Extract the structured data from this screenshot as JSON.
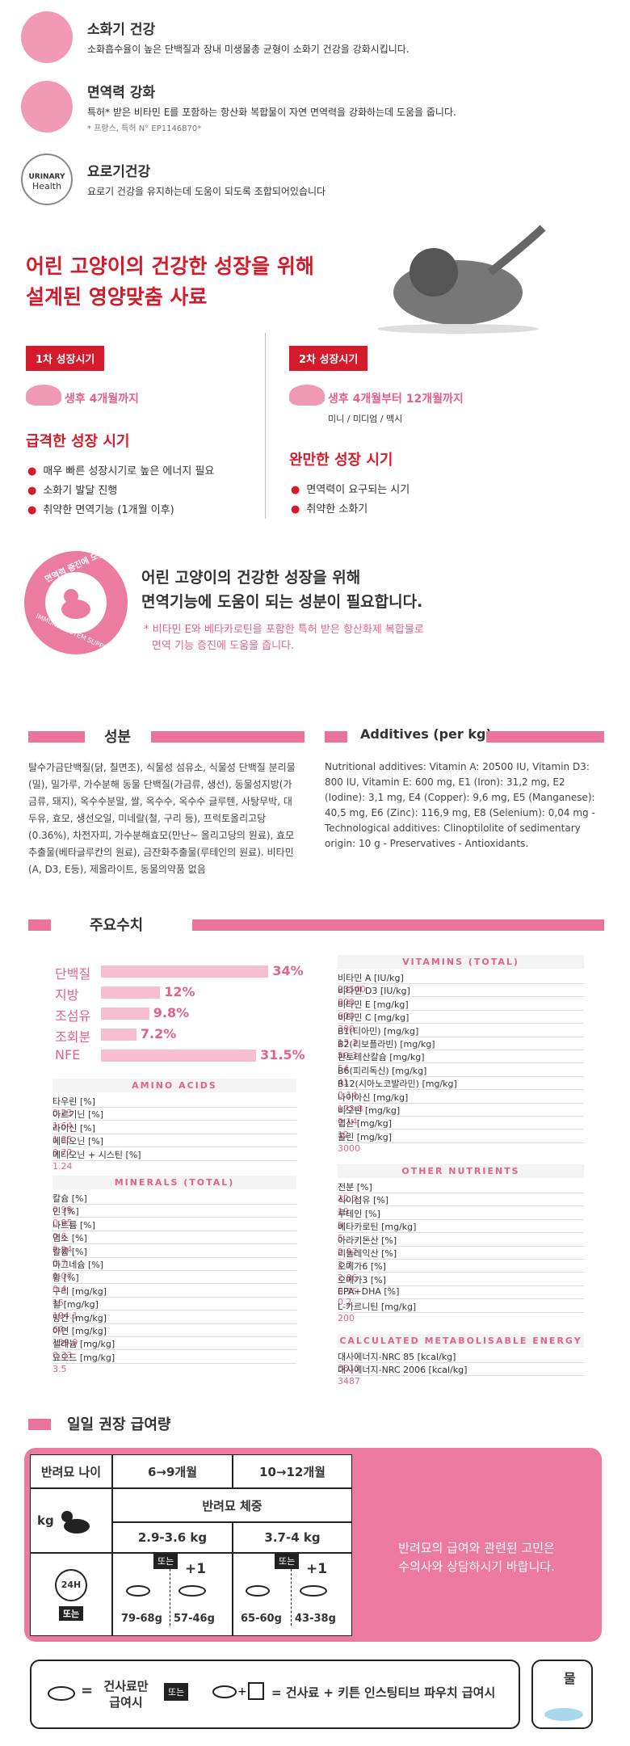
{
  "benefits": [
    {
      "title": "소화기 건강",
      "text": "소화흡수율이 높은 단백질과 장내 미생물총 균형이 소화기 건강을 강화시킵니다."
    },
    {
      "title": "면역력 강화",
      "text": "특허* 받은 비타민 E를 포함하는 항산화 복합물이 자연 면역력을 강화하는데 도움을 줍니다.",
      "note": "* 프랑스, 특허 N° EP1146870*"
    },
    {
      "title": "요로기건강",
      "text": "요로기 건강을 유지하는데 도움이 되도록 조합되어있습니다",
      "icon": [
        "URINARY",
        "Health"
      ]
    }
  ],
  "growth": {
    "headline": [
      "어린 고양이의 건강한 성장을 위해",
      "설계된 영양맞춤 사료"
    ],
    "stages": [
      {
        "badge": "1차 성장시기",
        "age": "생후 4개월까지",
        "title": "급격한 성장 시기",
        "bullets": [
          "매우 빠른 성장시기로 높은 에너지 필요",
          "소화기 발달 진행",
          "취약한 면역기능 (1개월 이후)"
        ]
      },
      {
        "badge": "2차 성장시기",
        "age": "생후 4개월부터 12개월까지",
        "sizes": "미니 / 미디엄 / 맥시",
        "title": "완만한 성장 시기",
        "bullets": [
          "면역력이 요구되는 시기",
          "취약한 소화기"
        ]
      }
    ]
  },
  "immune": {
    "badge": [
      "면역력 증진에 도움",
      "IMMUNE SYSTEM SUPPORT"
    ],
    "headline": [
      "어린 고양이의 건강한 성장을 위해",
      "면역기능에 도움이 되는 성분이 필요합니다."
    ],
    "note": [
      "* 비타민 E와 베타카로틴을 포함한 특허 받은 항산화제 복합물로",
      "면역 기능 증진에 도움을 줍니다."
    ]
  },
  "ingredients": {
    "title": "성분",
    "text": "탈수가금단백질(닭, 칠면조), 식물성 섬유소, 식물성 단백질 분리물(밀), 밀가루, 가수분해 동물 단백질(가금류, 생선), 동물성지방(가금류, 돼지), 옥수수분말, 쌀, 옥수수, 옥수수 글루텐, 사탕무박, 대두유, 효모, 생선오일, 미네랄(철, 구리 등), 프럭토올리고당(0.36%), 차전자피, 가수분해효모(만난~ 올리고당의 원료), 효모추출물(베타글루칸의 원료), 금잔화추출물(루테인의 원료). 비타민(A, D3, E등), 제올라이트, 동물의약품 없음"
  },
  "additives": {
    "title": "Additives (per kg)",
    "text": "Nutritional additives: Vitamin A: 20500 IU, Vitamin D3: 800 IU, Vitamin E: 600 mg, E1 (Iron): 31,2 mg, E2 (Iodine): 3,1 mg, E4 (Copper): 9,6 mg, E5 (Manganese): 40,5 mg, E6 (Zinc): 116,9 mg, E8 (Selenium): 0,04 mg - Technological additives: Clinoptilolite of sedimentary origin: 10 g - Preservatives - Antioxidants."
  },
  "key_values": {
    "title": "주요수치",
    "macros": [
      {
        "name": "단백질",
        "value": 34,
        "value_label": "34%"
      },
      {
        "name": "지방",
        "value": 12,
        "value_label": "12%"
      },
      {
        "name": "조섬유",
        "value": 9.8,
        "value_label": "9.8%"
      },
      {
        "name": "조회분",
        "value": 7.2,
        "value_label": "7.2%"
      },
      {
        "name": "NFE",
        "value": 31.5,
        "value_label": "31.5%"
      }
    ],
    "tables": [
      {
        "title": "AMINO ACIDS",
        "rows": [
          [
            "타우린 [%]",
            "0.23"
          ],
          [
            "아르기닌 [%]",
            "1.64"
          ],
          [
            "라이신 [%]",
            "1.35"
          ],
          [
            "메티오닌 [%]",
            "0.77"
          ],
          [
            "메티오닌 + 시스틴 [%]",
            "1.24"
          ]
        ]
      },
      {
        "title": "MINERALS (TOTAL)",
        "rows": [
          [
            "칼슘 [%]",
            "0.99"
          ],
          [
            "인 [%]",
            "0.95"
          ],
          [
            "나트륨 [%]",
            "0.6"
          ],
          [
            "염소 [%]",
            "0.94"
          ],
          [
            "칼륨 [%]",
            "0.7"
          ],
          [
            "마그네슘 [%]",
            "0.07"
          ],
          [
            "황 [%]",
            "0.4"
          ],
          [
            "구리 [mg/kg]",
            "15"
          ],
          [
            "철 [mg/kg]",
            "194.1"
          ],
          [
            "망간 [mg/kg]",
            "60"
          ],
          [
            "아연 [mg/kg]",
            "159.9"
          ],
          [
            "셀레늄 [mg/kg]",
            "0.33"
          ],
          [
            "요오드 [mg/kg]",
            "3.5"
          ]
        ]
      },
      {
        "title": "VITAMINS (TOTAL)",
        "rows": [
          [
            "비타민 A [IU/kg]",
            "23500"
          ],
          [
            "비타민 D3 [IU/kg]",
            "800"
          ],
          [
            "비타민 E [mg/kg]",
            "600"
          ],
          [
            "비타민 C [mg/kg]",
            "300"
          ],
          [
            "B1(티아민) [mg/kg]",
            "13.3"
          ],
          [
            "B2(리보플라빈) [mg/kg]",
            "50.3"
          ],
          [
            "판토테산칼슘 [mg/kg]",
            "54"
          ],
          [
            "B6(피리독신) [mg/kg]",
            "41"
          ],
          [
            "B12(시아노코발라민) [mg/kg]",
            "0.14"
          ],
          [
            "나이아신 [mg/kg]",
            "173.8"
          ],
          [
            "비오틴 [mg/kg]",
            "3.14"
          ],
          [
            "엽산 [mg/kg]",
            "12"
          ],
          [
            "콜린 [mg/kg]",
            "3000"
          ]
        ]
      },
      {
        "title": "OTHER NUTRIENTS",
        "rows": [
          [
            "전분 [%]",
            "22.3"
          ],
          [
            "식이섬유 [%]",
            "19"
          ],
          [
            "루테인 [%]",
            "5"
          ],
          [
            "베타카로틴 [mg/kg]",
            "5"
          ],
          [
            "아라키돈산 [%]",
            "0.07"
          ],
          [
            "리놀레익산 [%]",
            "2.7"
          ],
          [
            "오메가6 [%]",
            "2.86"
          ],
          [
            "오메가3 [%]",
            "0.55"
          ],
          [
            "EPA+DHA [%]",
            "0.2"
          ],
          [
            "L-카르니틴 [mg/kg]",
            "200"
          ]
        ]
      },
      {
        "title": "CALCULATED METABOLISABLE ENERGY",
        "rows": [
          [
            "대사에너지-NRC 85 [kcal/kg]",
            "3313"
          ],
          [
            "대사에너지-NRC 2006 [kcal/kg]",
            "3487"
          ]
        ]
      }
    ]
  },
  "feeding": {
    "title": "일일 권장 급여량",
    "age_label": "반려묘 나이",
    "ages": [
      "6→9개월",
      "10→12개월"
    ],
    "weight_label": "반려묘 체중",
    "unit": "kg",
    "weights": [
      "2.9-3.6 kg",
      "3.7-4 kg"
    ],
    "or": "또는",
    "plus": "+1",
    "clock": "24H",
    "amounts": [
      "79-68g",
      "57-46g",
      "65-60g",
      "43-38g"
    ],
    "advice": [
      "반려묘의 급여와 관련된 고민은",
      "수의사와 상담하시기 바랍니다."
    ],
    "legend": {
      "eq": "=",
      "dry_only": [
        "건사료만",
        "급여시"
      ],
      "combo": "= 건사료 + 키튼 인스팅티브 파우치 급여시",
      "water": "물"
    }
  }
}
